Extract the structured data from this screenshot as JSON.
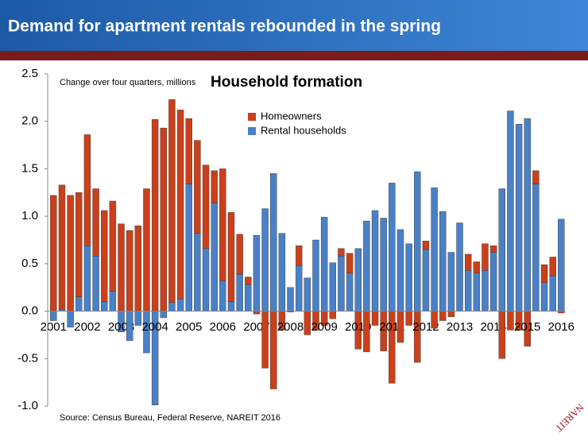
{
  "header": {
    "title": "Demand for apartment rentals rebounded in the spring"
  },
  "source": "Source: Census Bureau, Federal Reserve, NAREIT 2016",
  "logo": "NAREIT",
  "chart_data": {
    "type": "stacked_bar",
    "title": "Household formation",
    "subtitle": "Change over four quarters, millions",
    "categories": [
      "2001",
      null,
      null,
      null,
      "2002",
      null,
      null,
      null,
      "2003",
      null,
      null,
      null,
      "2004",
      null,
      null,
      null,
      "2005",
      null,
      null,
      null,
      "2006",
      null,
      null,
      null,
      "2007",
      null,
      null,
      null,
      "2008",
      null,
      null,
      null,
      "2009",
      null,
      null,
      null,
      "2010",
      null,
      null,
      null,
      "2011",
      null,
      null,
      null,
      "2012",
      null,
      null,
      null,
      "2013",
      null,
      null,
      null,
      "2014",
      null,
      null,
      null,
      "2015",
      null,
      null,
      null,
      "2016"
    ],
    "series": [
      {
        "name": "Homeowners",
        "color": "#c9401b",
        "values": [
          1.22,
          1.31,
          1.22,
          1.1,
          1.17,
          0.71,
          0.96,
          0.95,
          0.92,
          0.85,
          0.9,
          1.29,
          2.02,
          1.93,
          2.14,
          1.99,
          0.69,
          0.98,
          0.88,
          0.34,
          1.18,
          0.94,
          0.42,
          0.08,
          -0.03,
          -0.6,
          -0.82,
          -0.2,
          -0.01,
          0.21,
          -0.25,
          -0.2,
          -0.15,
          -0.08,
          0.08,
          0.21,
          -0.4,
          -0.43,
          -0.15,
          -0.42,
          -0.76,
          -0.33,
          -0.15,
          -0.54,
          0.09,
          -0.18,
          -0.1,
          -0.06,
          0,
          0.17,
          0.12,
          0.28,
          0.07,
          -0.5,
          -0.2,
          -0.2,
          -0.37,
          0.14,
          0.19,
          0.2,
          -0.02
        ]
      },
      {
        "name": "Rental households",
        "color": "#4a80c6",
        "values": [
          -0.1,
          0.02,
          -0.17,
          0.15,
          0.69,
          0.58,
          0.1,
          0.21,
          -0.22,
          -0.31,
          -0.15,
          -0.44,
          -0.99,
          -0.07,
          0.09,
          0.13,
          1.34,
          0.82,
          0.66,
          1.14,
          0.32,
          0.1,
          0.39,
          0.28,
          0.8,
          1.08,
          1.45,
          0.82,
          0.25,
          0.48,
          0.35,
          0.75,
          0.99,
          0.51,
          0.58,
          0.4,
          0.66,
          0.95,
          1.06,
          0.98,
          1.35,
          0.86,
          0.71,
          1.47,
          0.65,
          1.3,
          1.05,
          0.62,
          0.93,
          0.43,
          0.4,
          0.43,
          0.62,
          1.29,
          2.11,
          1.97,
          2.03,
          1.34,
          0.3,
          0.37,
          0.97
        ]
      }
    ],
    "ylim": [
      -1.0,
      2.5
    ],
    "yticks": [
      {
        "value": -1.0,
        "label": "-1.0"
      },
      -0.5,
      {
        "value": 0,
        "label": "0.0"
      },
      0.5,
      {
        "value": 1.0,
        "label": "1.0"
      },
      1.5,
      {
        "value": 2.0,
        "label": "2.0"
      },
      2.5
    ],
    "legend": "top"
  }
}
